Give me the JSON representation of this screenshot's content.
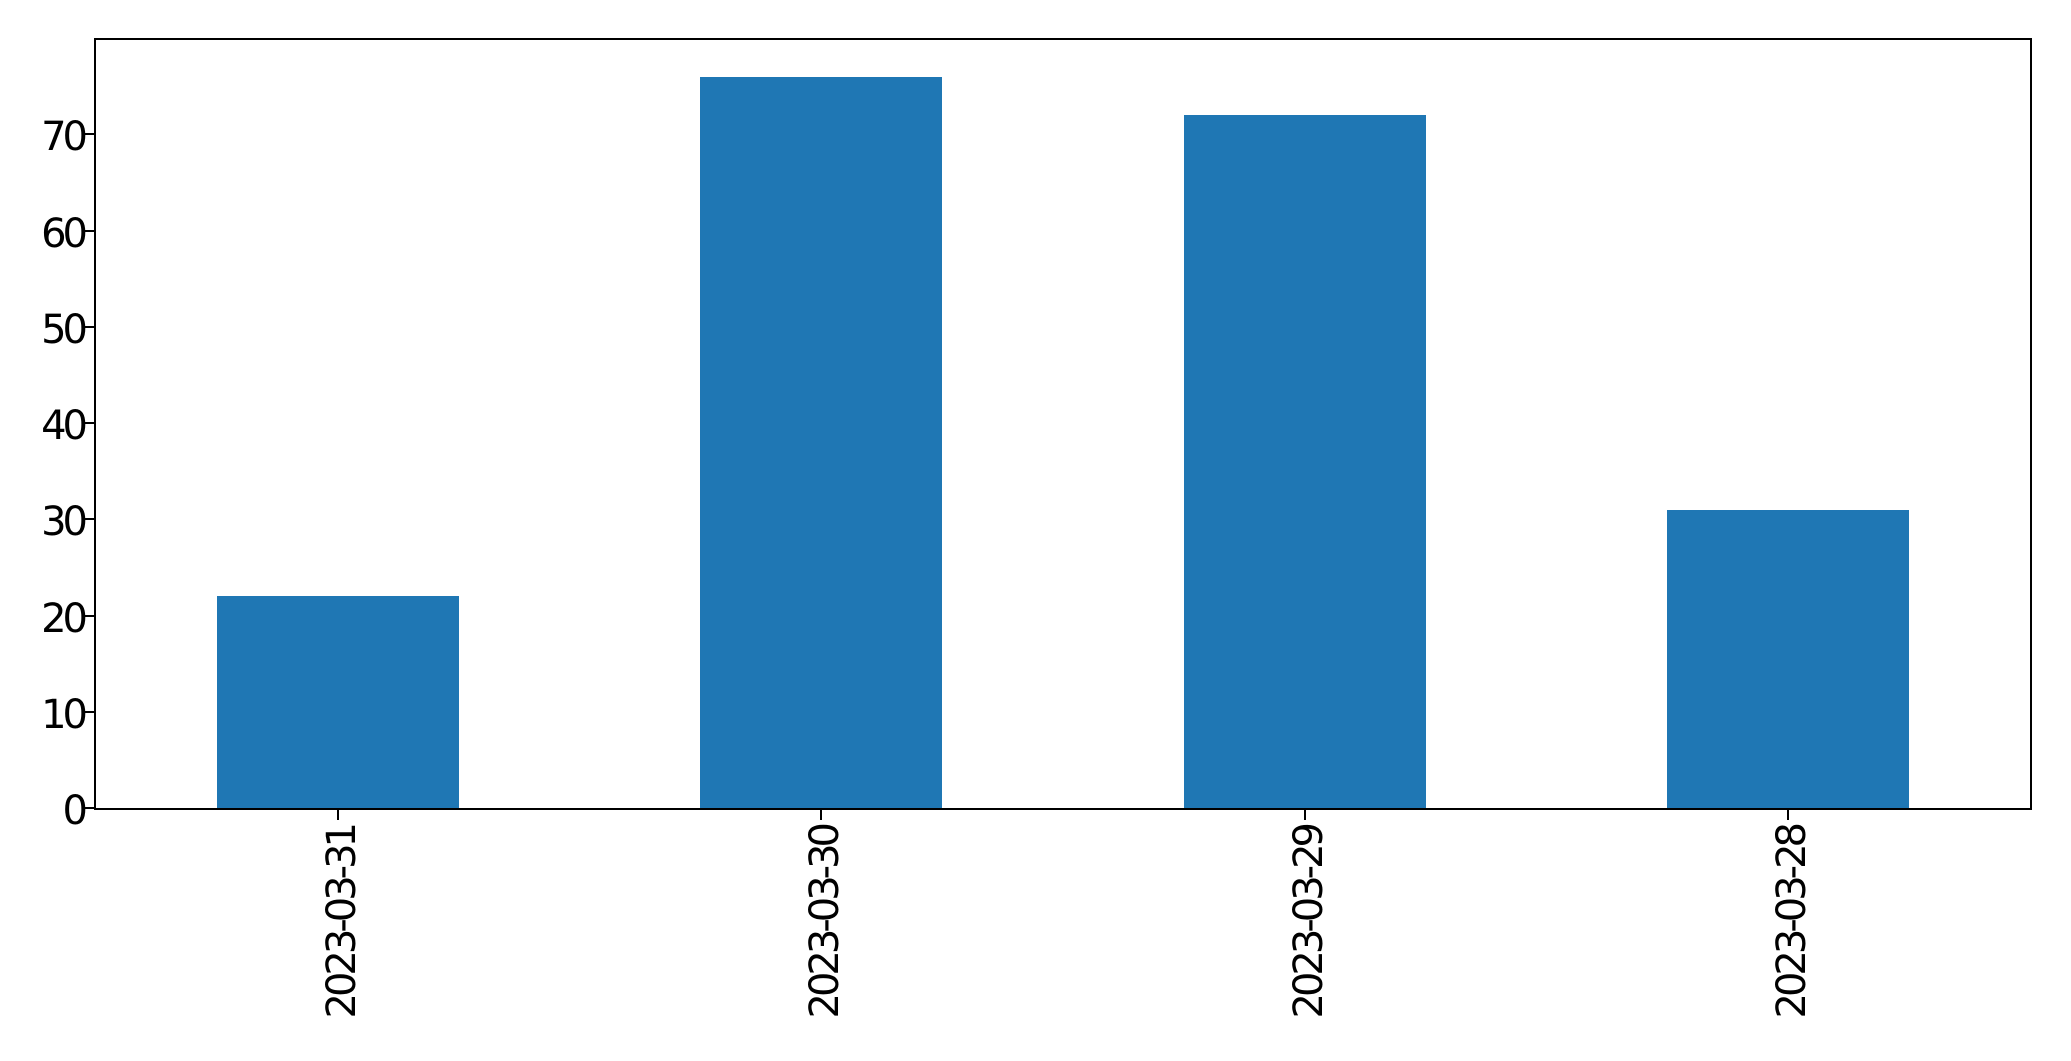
{
  "chart_data": {
    "type": "bar",
    "title": "",
    "xlabel": "",
    "ylabel": "",
    "categories": [
      "2023-03-31",
      "2023-03-30",
      "2023-03-29",
      "2023-03-28"
    ],
    "values": [
      22,
      76,
      72,
      31
    ],
    "bar_color": "#1f77b4",
    "axis_color": "#000000",
    "background_color": "#ffffff",
    "ylim": [
      0,
      79.8
    ],
    "yticks": [
      0,
      10,
      20,
      30,
      40,
      50,
      60,
      70
    ],
    "xtick_rotation_deg": 90,
    "bar_width_fraction": 0.5,
    "grid": false,
    "legend_position": "none"
  }
}
